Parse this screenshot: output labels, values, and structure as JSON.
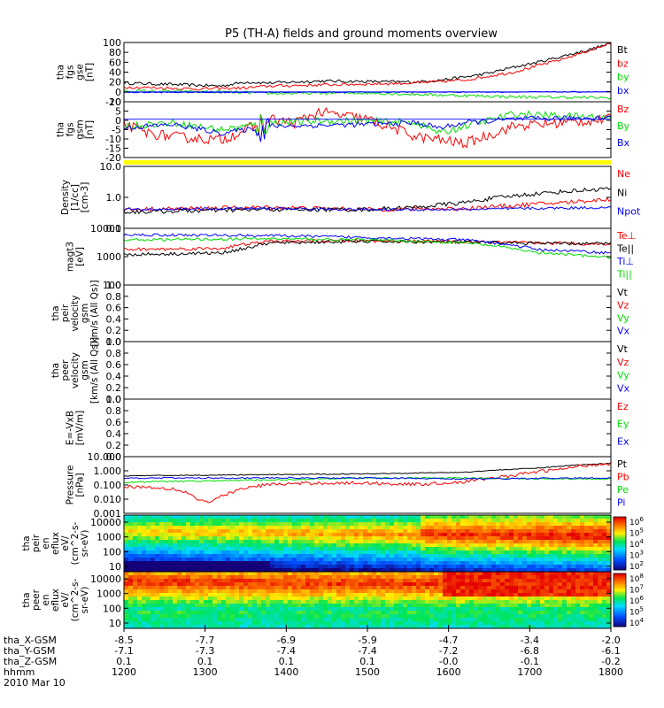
{
  "title": "P5 (TH-A) fields and ground moments overview",
  "colors": {
    "black": "#000000",
    "red": "#ff0000",
    "green": "#00e000",
    "blue": "#0000ff",
    "yellow": "#ffff00"
  },
  "chart_data": [
    {
      "id": "fgs_gse",
      "type": "line",
      "ylabel_lines": [
        "tha",
        "fgs",
        "gse",
        "[nT]"
      ],
      "ylim": [
        -20,
        100
      ],
      "ticks": [
        "100",
        "80",
        "60",
        "40",
        "20",
        "0",
        "-20"
      ],
      "legend": [
        {
          "label": "Bt",
          "color": "black"
        },
        {
          "label": "bz",
          "color": "red"
        },
        {
          "label": "by",
          "color": "green"
        },
        {
          "label": "bx",
          "color": "blue"
        }
      ],
      "series": [
        {
          "name": "Bt",
          "color": "black",
          "points": [
            [
              0,
              18
            ],
            [
              0.1,
              15
            ],
            [
              0.2,
              12
            ],
            [
              0.25,
              20
            ],
            [
              0.3,
              18
            ],
            [
              0.4,
              22
            ],
            [
              0.5,
              21
            ],
            [
              0.6,
              20
            ],
            [
              0.65,
              24
            ],
            [
              0.7,
              30
            ],
            [
              0.75,
              38
            ],
            [
              0.8,
              50
            ],
            [
              0.85,
              60
            ],
            [
              0.9,
              72
            ],
            [
              0.95,
              84
            ],
            [
              1,
              98
            ]
          ],
          "noise": 3
        },
        {
          "name": "bz",
          "color": "red",
          "points": [
            [
              0,
              10
            ],
            [
              0.15,
              6
            ],
            [
              0.25,
              8
            ],
            [
              0.3,
              12
            ],
            [
              0.4,
              14
            ],
            [
              0.5,
              16
            ],
            [
              0.6,
              18
            ],
            [
              0.7,
              24
            ],
            [
              0.8,
              40
            ],
            [
              0.9,
              66
            ],
            [
              1,
              98
            ]
          ],
          "noise": 3
        },
        {
          "name": "by",
          "color": "green",
          "points": [
            [
              0,
              2
            ],
            [
              0.2,
              0
            ],
            [
              0.3,
              -3
            ],
            [
              0.5,
              -2
            ],
            [
              0.6,
              -5
            ],
            [
              0.8,
              -10
            ],
            [
              1,
              -12
            ]
          ],
          "noise": 3
        },
        {
          "name": "bx",
          "color": "blue",
          "points": [
            [
              0,
              -1
            ],
            [
              1,
              0
            ]
          ],
          "noise": 1
        }
      ]
    },
    {
      "id": "fgs_gsm",
      "type": "line",
      "ylabel_lines": [
        "tha",
        "fgs",
        "gsm",
        "[nT]"
      ],
      "ylim": [
        -22,
        10
      ],
      "ticks": [
        "10",
        "5",
        "0",
        "-5",
        "-10",
        "-15",
        "-20"
      ],
      "legend": [
        {
          "label": "Bz",
          "color": "red"
        },
        {
          "label": "By",
          "color": "green"
        },
        {
          "label": "Bx",
          "color": "blue"
        }
      ],
      "series": [
        {
          "name": "Bz",
          "color": "red",
          "points": [
            [
              0,
              -3
            ],
            [
              0.05,
              -8
            ],
            [
              0.1,
              -10
            ],
            [
              0.2,
              -12
            ],
            [
              0.25,
              -6
            ],
            [
              0.3,
              0
            ],
            [
              0.35,
              -2
            ],
            [
              0.4,
              4
            ],
            [
              0.45,
              2
            ],
            [
              0.5,
              0
            ],
            [
              0.55,
              -5
            ],
            [
              0.6,
              -10
            ],
            [
              0.65,
              -12
            ],
            [
              0.7,
              -14
            ],
            [
              0.75,
              -9
            ],
            [
              0.8,
              -4
            ],
            [
              0.9,
              -2
            ],
            [
              1,
              0
            ]
          ],
          "noise": 3
        },
        {
          "name": "By",
          "color": "green",
          "points": [
            [
              0,
              -4
            ],
            [
              0.1,
              -2
            ],
            [
              0.2,
              -6
            ],
            [
              0.3,
              -2
            ],
            [
              0.4,
              -1
            ],
            [
              0.5,
              -1
            ],
            [
              0.6,
              -2
            ],
            [
              0.65,
              -8
            ],
            [
              0.7,
              -4
            ],
            [
              0.8,
              3
            ],
            [
              0.9,
              2
            ],
            [
              1,
              1
            ]
          ],
          "noise": 2
        },
        {
          "name": "Bx",
          "color": "blue",
          "points": [
            [
              0,
              -5
            ],
            [
              0.1,
              -3
            ],
            [
              0.2,
              -8
            ],
            [
              0.3,
              -4
            ],
            [
              0.5,
              -3
            ],
            [
              0.6,
              -2
            ],
            [
              0.65,
              -5
            ],
            [
              0.7,
              -2
            ],
            [
              0.8,
              0
            ],
            [
              1,
              1
            ]
          ],
          "noise": 1.5
        }
      ]
    },
    {
      "id": "density",
      "type": "line",
      "log": true,
      "ylabel_lines": [
        "Density",
        "[1/cc]",
        "[cm-3]"
      ],
      "ylim": [
        0.1,
        20
      ],
      "ticks": [
        "10.0",
        "1.0",
        "0.1"
      ],
      "legend": [
        {
          "label": "Ne",
          "color": "red"
        },
        {
          "label": "Ni",
          "color": "black"
        },
        {
          "label": "Npot",
          "color": "blue"
        }
      ],
      "series": [
        {
          "name": "Ne",
          "color": "red",
          "points": [
            [
              0,
              0.5
            ],
            [
              0.3,
              0.6
            ],
            [
              0.5,
              0.5
            ],
            [
              0.7,
              0.55
            ],
            [
              0.8,
              0.7
            ],
            [
              0.9,
              0.9
            ],
            [
              1,
              1.2
            ]
          ],
          "noise": 0.08
        },
        {
          "name": "Ni",
          "color": "black",
          "points": [
            [
              0,
              0.4
            ],
            [
              0.3,
              0.5
            ],
            [
              0.5,
              0.5
            ],
            [
              0.6,
              0.6
            ],
            [
              0.7,
              0.9
            ],
            [
              0.8,
              1.6
            ],
            [
              0.9,
              2.3
            ],
            [
              1,
              3
            ]
          ],
          "noise": 0.08
        },
        {
          "name": "Npot",
          "color": "blue",
          "points": [
            [
              0,
              0.5
            ],
            [
              0.3,
              0.55
            ],
            [
              0.5,
              0.5
            ],
            [
              0.7,
              0.5
            ],
            [
              1,
              0.6
            ]
          ],
          "noise": 0.05
        }
      ]
    },
    {
      "id": "temperature",
      "type": "line",
      "log": true,
      "ylabel_lines": [
        "magt3",
        "[eV]"
      ],
      "ylim": [
        100,
        12000
      ],
      "ticks": [
        "10000",
        "1000",
        "100"
      ],
      "legend": [
        {
          "label": "Te⊥",
          "color": "red"
        },
        {
          "label": "Te||",
          "color": "black"
        },
        {
          "label": "Ti⊥",
          "color": "blue"
        },
        {
          "label": "Ti||",
          "color": "green"
        }
      ],
      "series": [
        {
          "name": "Te⊥",
          "color": "red",
          "points": [
            [
              0,
              2000
            ],
            [
              0.2,
              2200
            ],
            [
              0.3,
              4000
            ],
            [
              0.5,
              4200
            ],
            [
              0.7,
              3800
            ],
            [
              0.85,
              3500
            ],
            [
              1,
              3200
            ]
          ],
          "noise": 0.06
        },
        {
          "name": "Te||",
          "color": "black",
          "points": [
            [
              0,
              1300
            ],
            [
              0.2,
              1500
            ],
            [
              0.25,
              2200
            ],
            [
              0.3,
              3500
            ],
            [
              0.5,
              4000
            ],
            [
              0.7,
              3700
            ],
            [
              0.9,
              3300
            ],
            [
              1,
              3300
            ]
          ],
          "noise": 0.06
        },
        {
          "name": "Ti⊥",
          "color": "blue",
          "points": [
            [
              0,
              7000
            ],
            [
              0.3,
              6500
            ],
            [
              0.5,
              5500
            ],
            [
              0.7,
              4500
            ],
            [
              0.85,
              2000
            ],
            [
              1,
              1500
            ]
          ],
          "noise": 0.05
        },
        {
          "name": "Ti||",
          "color": "green",
          "points": [
            [
              0,
              4500
            ],
            [
              0.3,
              5000
            ],
            [
              0.5,
              4500
            ],
            [
              0.7,
              3500
            ],
            [
              0.85,
              1500
            ],
            [
              1,
              1000
            ]
          ],
          "noise": 0.05
        }
      ]
    },
    {
      "id": "peir_velocity",
      "type": "line",
      "ylabel_lines": [
        "tha",
        "peir",
        "velocity",
        "gsm",
        "[km/s (All Qs)]"
      ],
      "ylim": [
        0,
        1
      ],
      "ticks": [
        "1.0",
        "0.8",
        "0.6",
        "0.4",
        "0.2",
        "0.0"
      ],
      "legend": [
        {
          "label": "Vt",
          "color": "black"
        },
        {
          "label": "Vz",
          "color": "red"
        },
        {
          "label": "Vy",
          "color": "green"
        },
        {
          "label": "Vx",
          "color": "blue"
        }
      ],
      "series": []
    },
    {
      "id": "peer_velocity",
      "type": "line",
      "ylabel_lines": [
        "tha",
        "peer",
        "velocity",
        "gsm",
        "[km/s (All Qs)]"
      ],
      "ylim": [
        0,
        1
      ],
      "ticks": [
        "1.0",
        "0.8",
        "0.6",
        "0.4",
        "0.2",
        "0.0"
      ],
      "legend": [
        {
          "label": "Vt",
          "color": "black"
        },
        {
          "label": "Vz",
          "color": "red"
        },
        {
          "label": "Vy",
          "color": "green"
        },
        {
          "label": "Vx",
          "color": "blue"
        }
      ],
      "series": []
    },
    {
      "id": "efield",
      "type": "line",
      "ylabel_lines": [
        "E=-VxB",
        "[mV/m]"
      ],
      "ylim": [
        0,
        1
      ],
      "ticks": [
        "1.0",
        "0.8",
        "0.6",
        "0.4",
        "0.2",
        "0.0"
      ],
      "legend": [
        {
          "label": "Ez",
          "color": "red"
        },
        {
          "label": "Ey",
          "color": "green"
        },
        {
          "label": "Ex",
          "color": "blue"
        }
      ],
      "series": []
    },
    {
      "id": "pressure",
      "type": "line",
      "log": true,
      "ylabel_lines": [
        "Pressure",
        "[nPa]"
      ],
      "ylim": [
        0.001,
        12
      ],
      "ticks": [
        "10.000",
        "1.000",
        "0.100",
        "0.010",
        "0.001"
      ],
      "legend": [
        {
          "label": "Pt",
          "color": "black"
        },
        {
          "label": "Pb",
          "color": "red"
        },
        {
          "label": "Pe",
          "color": "green"
        },
        {
          "label": "Pi",
          "color": "blue"
        }
      ],
      "series": [
        {
          "name": "Pt",
          "color": "black",
          "points": [
            [
              0,
              0.5
            ],
            [
              0.3,
              0.6
            ],
            [
              0.5,
              0.7
            ],
            [
              0.7,
              0.9
            ],
            [
              0.85,
              1.8
            ],
            [
              1,
              4
            ]
          ],
          "noise": 0.03
        },
        {
          "name": "Pb",
          "color": "red",
          "points": [
            [
              0,
              0.09
            ],
            [
              0.1,
              0.06
            ],
            [
              0.15,
              0.01
            ],
            [
              0.18,
              0.005
            ],
            [
              0.22,
              0.03
            ],
            [
              0.3,
              0.12
            ],
            [
              0.4,
              0.15
            ],
            [
              0.5,
              0.15
            ],
            [
              0.6,
              0.12
            ],
            [
              0.7,
              0.18
            ],
            [
              0.8,
              0.5
            ],
            [
              0.9,
              1.5
            ],
            [
              1,
              4
            ]
          ],
          "noise": 0.12
        },
        {
          "name": "Pe",
          "color": "green",
          "points": [
            [
              0,
              0.17
            ],
            [
              0.3,
              0.25
            ],
            [
              0.5,
              0.35
            ],
            [
              0.7,
              0.35
            ],
            [
              0.85,
              0.3
            ],
            [
              1,
              0.3
            ]
          ],
          "noise": 0.05
        },
        {
          "name": "Pi",
          "color": "blue",
          "points": [
            [
              0,
              0.35
            ],
            [
              0.3,
              0.35
            ],
            [
              0.5,
              0.35
            ],
            [
              0.7,
              0.3
            ],
            [
              1,
              0.35
            ]
          ],
          "noise": 0.05
        }
      ]
    },
    {
      "id": "peir_spectrogram",
      "type": "heatmap",
      "ylabel_lines": [
        "tha",
        "peir",
        "en",
        "eflux",
        "eV/",
        "(cm^2-s-",
        "sr-eV)"
      ],
      "ticks": [
        "10000",
        "1000",
        "100",
        "10"
      ],
      "colorbar": [
        "10^6",
        "10^5",
        "10^4",
        "10^3",
        "10^2"
      ]
    },
    {
      "id": "peer_spectrogram",
      "type": "heatmap",
      "ylabel_lines": [
        "tha",
        "peer",
        "en",
        "eflux",
        "eV/",
        "(cm^2-s-",
        "sr-eV)"
      ],
      "ticks": [
        "10000",
        "1000",
        "100",
        "10"
      ],
      "colorbar": [
        "10^8",
        "10^7",
        "10^6",
        "10^5",
        "10^4"
      ]
    }
  ],
  "xaxis": {
    "rows": [
      {
        "label": "tha_X-GSM",
        "values": [
          "-8.5",
          "-7.7",
          "-6.9",
          "-5.9",
          "-4.7",
          "-3.4",
          "-2.0"
        ]
      },
      {
        "label": "tha_Y-GSM",
        "values": [
          "-7.1",
          "-7.3",
          "-7.4",
          "-7.4",
          "-7.2",
          "-6.8",
          "-6.1"
        ]
      },
      {
        "label": "tha_Z-GSM",
        "values": [
          "0.1",
          "0.1",
          "0.1",
          "0.1",
          "-0.0",
          "-0.1",
          "-0.2"
        ]
      },
      {
        "label": "hhmm",
        "values": [
          "1200",
          "1300",
          "1400",
          "1500",
          "1600",
          "1700",
          "1800"
        ]
      }
    ],
    "date": "2010 Mar 10"
  }
}
